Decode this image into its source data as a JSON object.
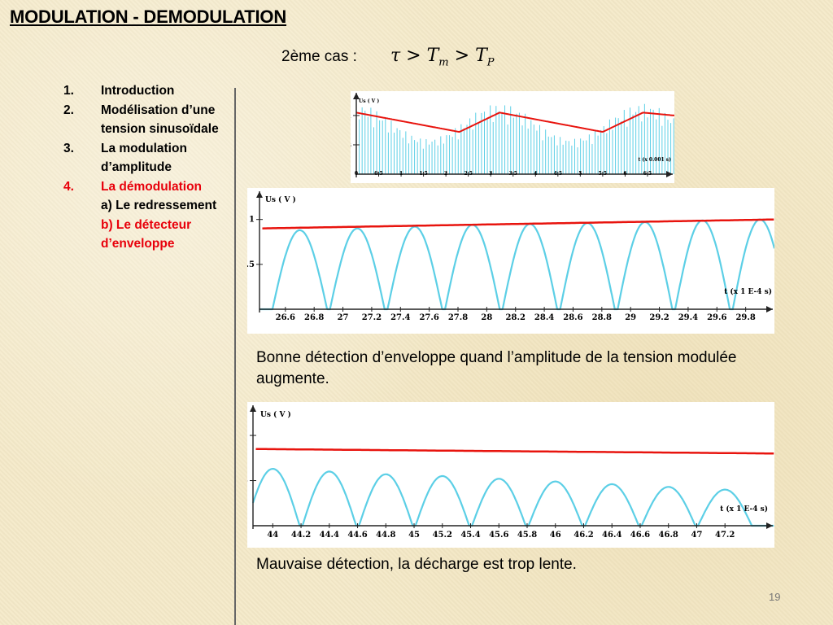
{
  "slide": {
    "title": "MODULATION - DEMODULATION",
    "case_label": "2ème cas :",
    "formula": {
      "tau": "τ",
      "gt": ">",
      "T": "T",
      "m": "m",
      "p": "P"
    },
    "outline": [
      {
        "num": "1.",
        "lines": [
          "Introduction"
        ],
        "highlight": false
      },
      {
        "num": "2.",
        "lines": [
          "Modélisation d’une",
          "tension sinusoïdale"
        ],
        "highlight": false
      },
      {
        "num": "3.",
        "lines": [
          "La modulation",
          "d’amplitude"
        ],
        "highlight": false
      },
      {
        "num": "4.",
        "lines": [
          "La démodulation"
        ],
        "highlight": true
      },
      {
        "num": "",
        "lines": [
          "a) Le redressement"
        ],
        "highlight": false
      },
      {
        "num": "",
        "lines": [
          "b) Le détecteur",
          "d’enveloppe"
        ],
        "highlight": true
      }
    ],
    "caption1": "Bonne détection d’enveloppe quand l’amplitude de la tension modulée augmente.",
    "caption2": "Mauvaise détection, la décharge est trop lente.",
    "page_number": "19"
  },
  "colors": {
    "envelope": "#e8140e",
    "signal": "#5ccfe6",
    "axis": "#1a2fd1",
    "highlight": "#e8000b"
  },
  "chart_data": [
    {
      "type": "line",
      "ylabel": "Us ( V )",
      "xlabel": "t (x 0.001 s)",
      "xlim": [
        0,
        7.1
      ],
      "ylim": [
        0,
        1.36
      ],
      "y_ticks": [
        "1",
        "0.5"
      ],
      "y_tick_values": [
        1,
        0.5
      ],
      "x_ticks": [
        "0",
        "0.5",
        "1",
        "1.5",
        "2",
        "2.5",
        "3",
        "3.5",
        "4",
        "4.5",
        "5",
        "5.5",
        "6",
        "6.5"
      ],
      "grid": false,
      "series": [
        {
          "values": "envelope",
          "x": [
            0,
            2.3,
            3.2,
            5.5,
            6.4,
            7.1
          ],
          "y": [
            1.05,
            0.72,
            1.05,
            0.72,
            1.05,
            1.0
          ]
        },
        {
          "values": "modulated",
          "x": [
            0,
            3.2,
            6.4
          ],
          "note": "carrier peaks follow 0.9+0.3cos modulation"
        }
      ]
    },
    {
      "type": "line",
      "ylabel": "Us ( V )",
      "xlabel": "t (x 1 E-4 s)",
      "xlim": [
        26.42,
        30.0
      ],
      "ylim": [
        0,
        1.26
      ],
      "y_ticks": [
        "1",
        ".5"
      ],
      "y_tick_values": [
        1,
        0.5
      ],
      "x_ticks": [
        "26.6",
        "26.8",
        "27",
        "27.2",
        "27.4",
        "27.6",
        "27.8",
        "28",
        "28.2",
        "28.4",
        "28.6",
        "28.8",
        "29",
        "29.2",
        "29.4",
        "29.6",
        "29.8"
      ],
      "grid": false,
      "series": [
        {
          "values": "envelope",
          "x": [
            26.42,
            30.0
          ],
          "y": [
            0.9,
            1.0
          ]
        },
        {
          "values": "half-wave",
          "peak_times": [
            26.7,
            27.1,
            27.5,
            27.9,
            28.3,
            28.7,
            29.1,
            29.5,
            29.9
          ],
          "peaks": [
            0.88,
            0.9,
            0.92,
            0.94,
            0.95,
            0.96,
            0.97,
            0.99,
            1.0
          ]
        }
      ]
    },
    {
      "type": "line",
      "ylabel": "Us ( V )",
      "xlabel": "t (x 1 E-4 s)",
      "xlim": [
        43.86,
        47.55
      ],
      "ylim": [
        0,
        1.28
      ],
      "y_ticks": [
        "1",
        ".5"
      ],
      "y_tick_values": [
        1,
        0.5
      ],
      "x_ticks": [
        "44",
        "44.2",
        "44.4",
        "44.6",
        "44.8",
        "45",
        "45.2",
        "45.4",
        "45.6",
        "45.8",
        "46",
        "46.2",
        "46.4",
        "46.6",
        "46.8",
        "47",
        "47.2"
      ],
      "grid": false,
      "series": [
        {
          "values": "envelope",
          "x": [
            43.86,
            47.55
          ],
          "y": [
            0.85,
            0.8
          ]
        },
        {
          "values": "half-wave",
          "peak_times": [
            44.0,
            44.4,
            44.8,
            45.2,
            45.6,
            46.0,
            46.4,
            46.8,
            47.2
          ],
          "peaks": [
            0.63,
            0.6,
            0.57,
            0.55,
            0.52,
            0.49,
            0.46,
            0.43,
            0.4
          ]
        }
      ]
    }
  ]
}
